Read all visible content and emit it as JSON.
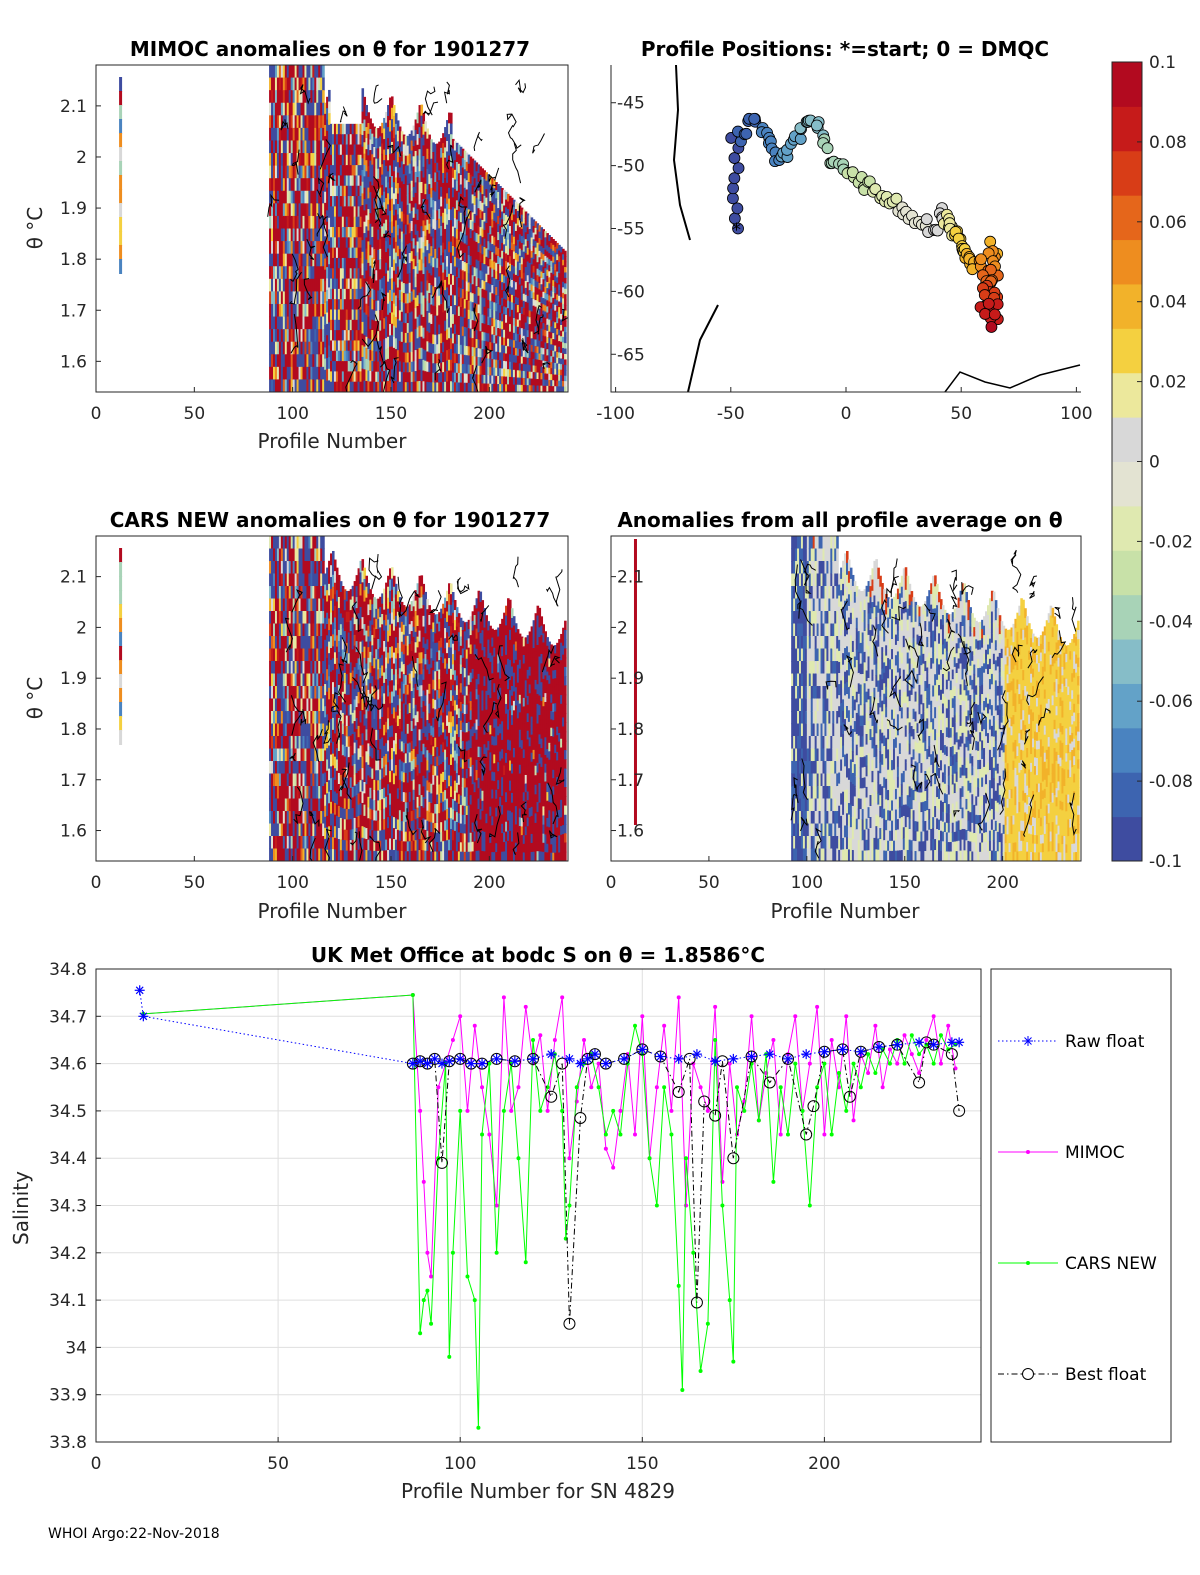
{
  "colors": {
    "raw_float": "#0000ff",
    "mimoc": "#ff00ff",
    "cars_new": "#00ff00",
    "best_float": "#000000",
    "axis": "#262626",
    "grid": "#dfdfdf"
  },
  "colormap": [
    "#3e4ca0",
    "#3d64b0",
    "#4a83c0",
    "#63a2c8",
    "#86bdc8",
    "#a8d3b7",
    "#c8e1a8",
    "#dfe9b0",
    "#e3e3d2",
    "#d8d8d8",
    "#ece89c",
    "#f4d040",
    "#f2b22a",
    "#ee8d1f",
    "#e5661b",
    "#d83d17",
    "#c61b1a",
    "#b20a1f"
  ],
  "colorbar": {
    "ticks": [
      "0.1",
      "0.08",
      "0.06",
      "0.04",
      "0.02",
      "0",
      "-0.02",
      "-0.04",
      "-0.06",
      "-0.08",
      "-0.1"
    ],
    "range": [
      -0.1,
      0.1
    ]
  },
  "panel_mimoc": {
    "title": "MIMOC anomalies on θ  for 1901277",
    "xlabel": "Profile Number",
    "ylabel": "θ °C",
    "xlim": [
      0,
      240
    ],
    "ylim": [
      1.54,
      2.18
    ],
    "xticks": [
      "0",
      "50",
      "100",
      "150",
      "200"
    ],
    "yticks": [
      "1.6",
      "1.7",
      "1.8",
      "1.9",
      "2",
      "2.1"
    ]
  },
  "panel_positions": {
    "title": "Profile Positions: *=start; 0 = DMQC",
    "xlim": [
      -102,
      102
    ],
    "ylim": [
      -68,
      -42
    ],
    "xticks": [
      "-100",
      "-50",
      "0",
      "50",
      "100"
    ],
    "yticks": [
      "-45",
      "-50",
      "-55",
      "-60",
      "-65"
    ]
  },
  "panel_cars": {
    "title": "CARS NEW anomalies on θ for 1901277",
    "xlabel": "Profile Number",
    "ylabel": "θ °C",
    "xlim": [
      0,
      240
    ],
    "ylim": [
      1.54,
      2.18
    ],
    "xticks": [
      "0",
      "50",
      "100",
      "150",
      "200"
    ],
    "yticks": [
      "1.6",
      "1.7",
      "1.8",
      "1.9",
      "2",
      "2.1"
    ]
  },
  "panel_avg": {
    "title": "Anomalies from all profile average on θ",
    "xlabel": "Profile Number",
    "xlim": [
      0,
      240
    ],
    "ylim": [
      1.54,
      2.18
    ],
    "xticks": [
      "0",
      "50",
      "100",
      "150",
      "200"
    ],
    "yticks": [
      "1.6",
      "1.7",
      "1.8",
      "1.9",
      "2",
      "2.1"
    ]
  },
  "chart_data": {
    "type": "line",
    "title": "UK Met Office at bodc S on θ = 1.8586°C",
    "xlabel": "Profile Number for SN 4829",
    "ylabel": "Salinity",
    "xlim": [
      0,
      243
    ],
    "ylim": [
      33.8,
      34.8
    ],
    "xticks": [
      "0",
      "50",
      "100",
      "150",
      "200"
    ],
    "yticks": [
      "33.8",
      "33.9",
      "34",
      "34.1",
      "34.2",
      "34.3",
      "34.4",
      "34.5",
      "34.6",
      "34.7",
      "34.8"
    ],
    "legend": [
      "Raw float",
      "MIMOC",
      "CARS NEW",
      "Best float"
    ],
    "series": [
      {
        "name": "Raw float",
        "style": "dotted",
        "marker": "star",
        "x": [
          12,
          13,
          87,
          89,
          91,
          93,
          95,
          97,
          100,
          103,
          106,
          110,
          115,
          120,
          125,
          130,
          133,
          135,
          137,
          140,
          145,
          150,
          155,
          160,
          165,
          170,
          175,
          180,
          185,
          190,
          195,
          200,
          205,
          210,
          215,
          220,
          226,
          230,
          235,
          237
        ],
        "y": [
          34.755,
          34.7,
          34.6,
          34.605,
          34.6,
          34.61,
          34.6,
          34.605,
          34.61,
          34.6,
          34.6,
          34.61,
          34.605,
          34.61,
          34.62,
          34.61,
          34.6,
          34.61,
          34.62,
          34.6,
          34.61,
          34.63,
          34.615,
          34.61,
          34.62,
          34.605,
          34.61,
          34.615,
          34.62,
          34.61,
          34.62,
          34.625,
          34.63,
          34.625,
          34.635,
          34.64,
          34.645,
          34.64,
          34.645,
          34.645
        ]
      },
      {
        "name": "MIMOC",
        "style": "solid",
        "marker": "dot",
        "x": [
          13,
          87,
          89,
          90,
          91,
          92,
          94,
          96,
          98,
          100,
          102,
          104,
          106,
          108,
          110,
          112,
          114,
          116,
          118,
          120,
          122,
          124,
          126,
          128,
          130,
          132,
          134,
          136,
          138,
          140,
          142,
          144,
          146,
          148,
          150,
          152,
          154,
          156,
          158,
          160,
          162,
          164,
          166,
          168,
          170,
          172,
          174,
          176,
          178,
          180,
          182,
          184,
          186,
          188,
          190,
          192,
          194,
          196,
          198,
          200,
          202,
          204,
          206,
          208,
          210,
          212,
          214,
          216,
          218,
          220,
          222,
          224,
          226,
          228,
          230,
          232,
          234,
          236
        ],
        "y": [
          34.705,
          34.745,
          34.5,
          34.35,
          34.2,
          34.15,
          34.55,
          34.6,
          34.65,
          34.7,
          34.5,
          34.68,
          34.55,
          34.45,
          34.3,
          34.74,
          34.5,
          34.55,
          34.72,
          34.6,
          34.66,
          34.5,
          34.65,
          34.74,
          34.4,
          34.52,
          34.65,
          34.55,
          34.6,
          34.42,
          34.38,
          34.5,
          34.62,
          34.45,
          34.7,
          34.4,
          34.55,
          34.68,
          34.5,
          34.74,
          34.3,
          34.6,
          34.55,
          34.5,
          34.72,
          34.35,
          34.6,
          34.45,
          34.52,
          34.7,
          34.48,
          34.58,
          34.65,
          34.45,
          34.62,
          34.7,
          34.5,
          34.6,
          34.72,
          34.45,
          34.65,
          34.55,
          34.7,
          34.48,
          34.62,
          34.58,
          34.68,
          34.55,
          34.63,
          34.6,
          34.66,
          34.62,
          34.58,
          34.65,
          34.7,
          34.6,
          34.68,
          34.59
        ]
      },
      {
        "name": "CARS NEW",
        "style": "solid",
        "marker": "dot",
        "x": [
          13,
          87,
          89,
          90,
          91,
          92,
          94,
          96,
          97,
          98,
          100,
          102,
          104,
          105,
          106,
          108,
          110,
          112,
          114,
          116,
          118,
          120,
          122,
          124,
          126,
          128,
          129,
          130,
          132,
          134,
          136,
          138,
          140,
          142,
          144,
          146,
          148,
          150,
          152,
          154,
          156,
          158,
          160,
          161,
          162,
          164,
          166,
          168,
          170,
          172,
          174,
          175,
          176,
          178,
          180,
          182,
          184,
          186,
          188,
          190,
          192,
          194,
          196,
          198,
          200,
          202,
          204,
          206,
          208,
          210,
          212,
          214,
          216,
          218,
          220,
          222,
          224,
          226,
          228,
          230,
          232,
          234,
          236
        ],
        "y": [
          34.705,
          34.745,
          34.03,
          34.1,
          34.12,
          34.05,
          34.4,
          34.6,
          33.98,
          34.2,
          34.5,
          34.15,
          34.1,
          33.83,
          34.45,
          34.6,
          34.2,
          34.5,
          34.6,
          34.4,
          34.18,
          34.65,
          34.5,
          34.55,
          34.62,
          34.5,
          34.23,
          34.3,
          34.55,
          34.6,
          34.62,
          34.55,
          34.45,
          34.5,
          34.45,
          34.6,
          34.68,
          34.62,
          34.4,
          34.3,
          34.55,
          34.45,
          34.13,
          33.91,
          34.4,
          34.2,
          33.95,
          34.05,
          34.65,
          34.3,
          34.1,
          33.97,
          34.55,
          34.5,
          34.6,
          34.48,
          34.62,
          34.35,
          34.55,
          34.45,
          34.6,
          34.5,
          34.3,
          34.55,
          34.6,
          34.45,
          34.58,
          34.5,
          34.6,
          34.55,
          34.62,
          34.58,
          34.63,
          34.6,
          34.65,
          34.6,
          34.66,
          34.62,
          34.64,
          34.6,
          34.66,
          34.63,
          34.64
        ]
      },
      {
        "name": "Best float",
        "style": "dashdot",
        "marker": "circle",
        "x": [
          87,
          89,
          91,
          93,
          95,
          97,
          100,
          103,
          106,
          110,
          115,
          120,
          125,
          128,
          130,
          133,
          135,
          137,
          140,
          145,
          150,
          155,
          160,
          163,
          165,
          167,
          170,
          172,
          175,
          180,
          185,
          190,
          195,
          197,
          200,
          205,
          207,
          210,
          215,
          220,
          226,
          228,
          230,
          235,
          237
        ],
        "y": [
          34.6,
          34.605,
          34.6,
          34.61,
          34.39,
          34.605,
          34.61,
          34.6,
          34.6,
          34.61,
          34.605,
          34.61,
          34.53,
          34.6,
          34.05,
          34.485,
          34.61,
          34.62,
          34.6,
          34.61,
          34.63,
          34.615,
          34.54,
          34.61,
          34.095,
          34.52,
          34.49,
          34.605,
          34.4,
          34.615,
          34.56,
          34.61,
          34.45,
          34.51,
          34.625,
          34.63,
          34.53,
          34.625,
          34.635,
          34.64,
          34.56,
          34.645,
          34.64,
          34.62,
          34.5
        ]
      }
    ]
  },
  "footer": "WHOI Argo:22-Nov-2018"
}
